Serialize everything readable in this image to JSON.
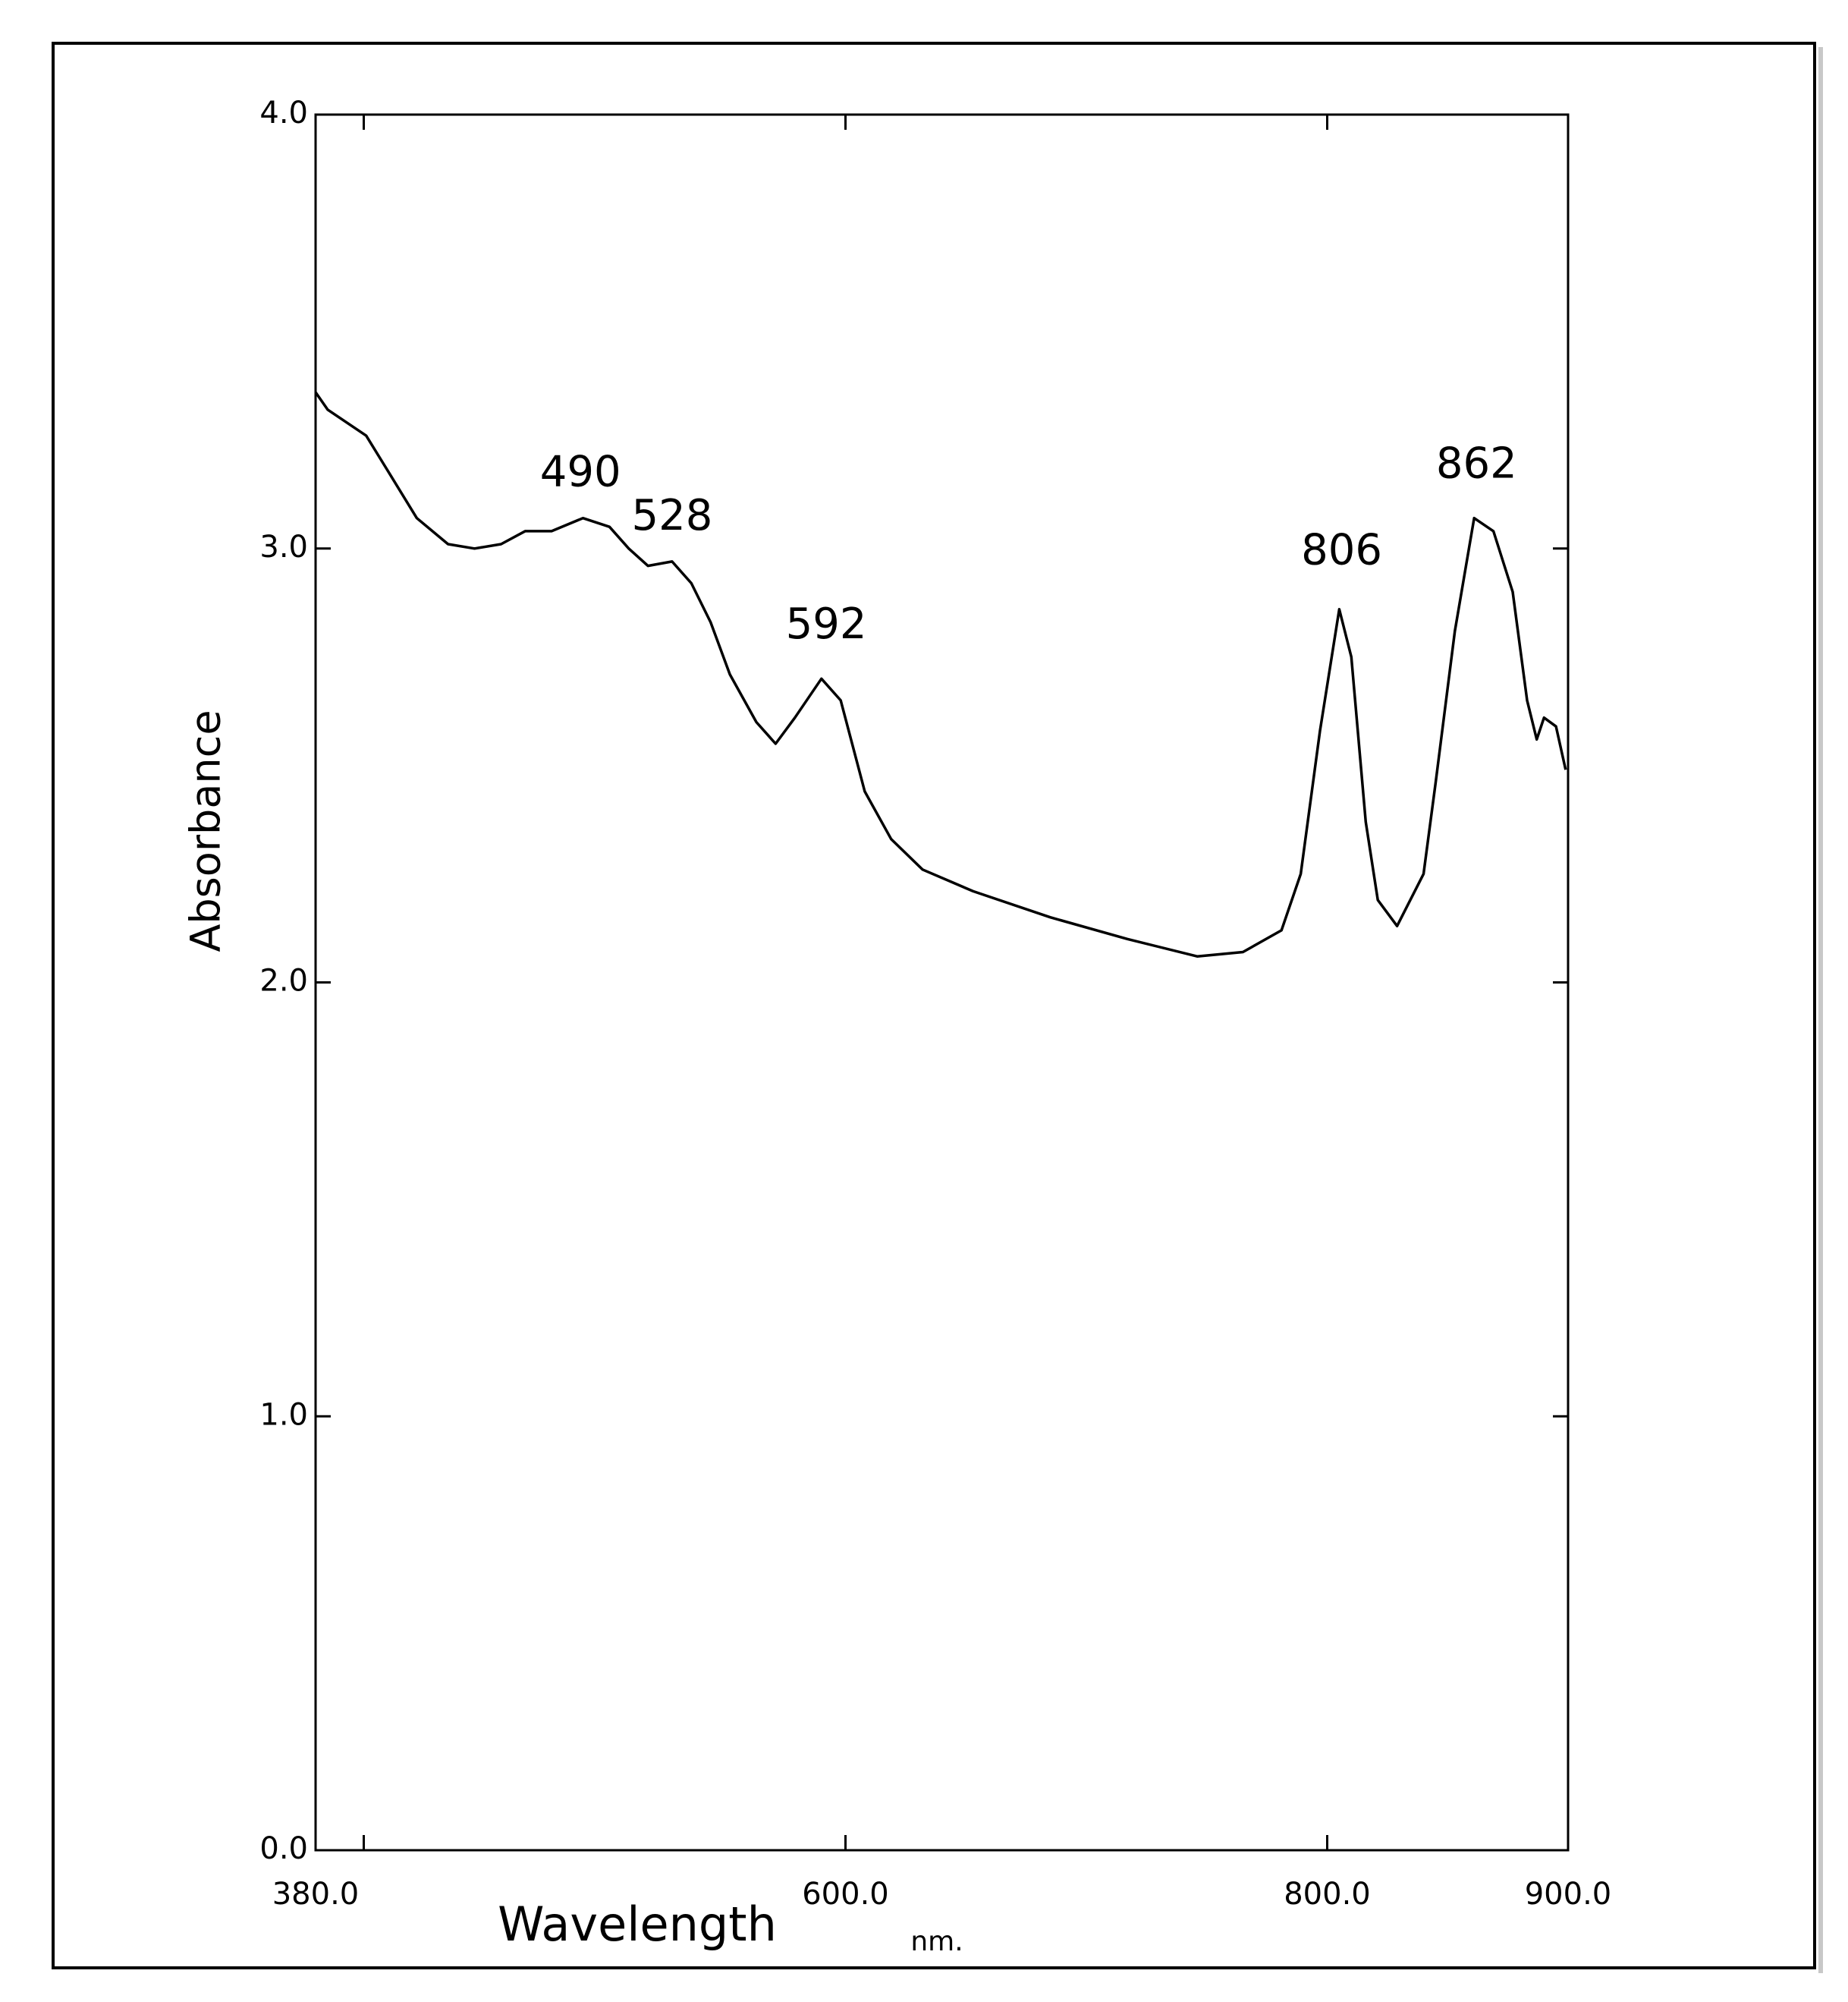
{
  "chart_data": {
    "type": "line",
    "x_label": "Wavelength",
    "x_unit": "nm.",
    "y_label": "Absorbance",
    "x": [
      380,
      385,
      401,
      411,
      422,
      435,
      446,
      457,
      467,
      478,
      491,
      502,
      510,
      518,
      528,
      536,
      544,
      552,
      563,
      571,
      579,
      590,
      598,
      608,
      619,
      632,
      653,
      685,
      717,
      746,
      765,
      781,
      789,
      797,
      805,
      810,
      816,
      821,
      829,
      840,
      845,
      853,
      861,
      869,
      877,
      883,
      887,
      890,
      895,
      899
    ],
    "series": [
      {
        "color": "#000000",
        "values": [
          3.36,
          3.32,
          3.26,
          3.17,
          3.07,
          3.01,
          3.0,
          3.01,
          3.04,
          3.04,
          3.07,
          3.05,
          3.0,
          2.96,
          2.97,
          2.92,
          2.83,
          2.71,
          2.6,
          2.55,
          2.61,
          2.7,
          2.65,
          2.44,
          2.33,
          2.26,
          2.21,
          2.15,
          2.1,
          2.06,
          2.07,
          2.12,
          2.25,
          2.58,
          2.86,
          2.75,
          2.37,
          2.19,
          2.13,
          2.25,
          2.46,
          2.81,
          3.07,
          3.04,
          2.9,
          2.65,
          2.56,
          2.61,
          2.59,
          2.49
        ]
      }
    ],
    "xlim": [
      380,
      900
    ],
    "xticks": [
      {
        "value": 380,
        "label": "380.0"
      },
      {
        "value": 400,
        "label": null
      },
      {
        "value": 600,
        "label": "600.0"
      },
      {
        "value": 800,
        "label": "800.0"
      },
      {
        "value": 900,
        "label": "900.0"
      }
    ],
    "ylim": [
      0,
      4
    ],
    "yticks": [
      {
        "value": 0,
        "label": "0.0"
      },
      {
        "value": 1,
        "label": "1.0"
      },
      {
        "value": 2,
        "label": "2.0"
      },
      {
        "value": 3,
        "label": "3.0"
      },
      {
        "value": 4,
        "label": "4.0"
      }
    ],
    "annotations": [
      {
        "label": "490",
        "x": 490,
        "y": 3.17
      },
      {
        "label": "528",
        "x": 528,
        "y": 3.07
      },
      {
        "label": "592",
        "x": 592,
        "y": 2.82
      },
      {
        "label": "806",
        "x": 806,
        "y": 2.99
      },
      {
        "label": "862",
        "x": 862,
        "y": 3.19
      }
    ]
  }
}
